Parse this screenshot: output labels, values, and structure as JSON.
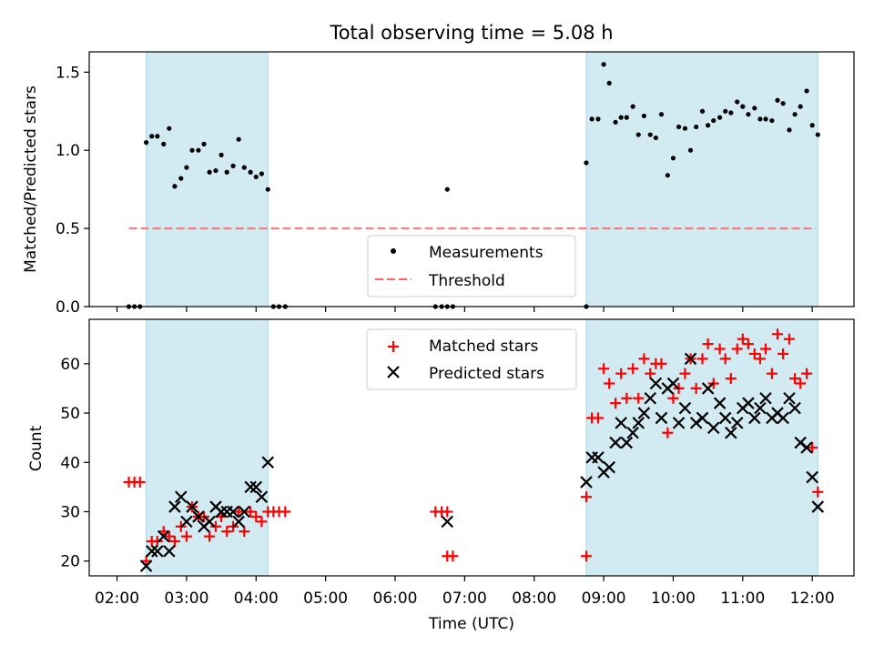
{
  "title": "Total observing time = 5.08 h",
  "x_axis": {
    "label": "Time (UTC)",
    "ticks": [
      "02:00",
      "03:00",
      "04:00",
      "05:00",
      "06:00",
      "07:00",
      "08:00",
      "09:00",
      "10:00",
      "11:00",
      "12:00"
    ],
    "range_hours": [
      1.6,
      12.6
    ]
  },
  "colors": {
    "shading": "#add8e6",
    "measurement": "#000000",
    "threshold": "#ff6666",
    "matched": "#ff0000",
    "predicted": "#000000"
  },
  "chart_data": [
    {
      "type": "scatter",
      "ylabel": "Matched/Predicted stars",
      "ylim": [
        0,
        1.63
      ],
      "yticks": [
        "0.0",
        "0.5",
        "1.0",
        "1.5"
      ],
      "observing_windows": [
        [
          2.42,
          4.17
        ],
        [
          8.75,
          12.08
        ]
      ],
      "threshold": {
        "name": "Threshold",
        "value": 0.5,
        "x_range": [
          2.17,
          12.05
        ]
      },
      "legend": {
        "entries": [
          "Measurements",
          "Threshold"
        ],
        "placement": "lower center"
      },
      "series": [
        {
          "name": "Measurements",
          "points": [
            [
              2.17,
              0
            ],
            [
              2.25,
              0
            ],
            [
              2.33,
              0
            ],
            [
              2.42,
              1.05
            ],
            [
              2.5,
              1.09
            ],
            [
              2.58,
              1.09
            ],
            [
              2.67,
              1.04
            ],
            [
              2.75,
              1.14
            ],
            [
              2.83,
              0.77
            ],
            [
              2.92,
              0.82
            ],
            [
              3.0,
              0.89
            ],
            [
              3.08,
              1.0
            ],
            [
              3.17,
              1.0
            ],
            [
              3.25,
              1.04
            ],
            [
              3.33,
              0.86
            ],
            [
              3.42,
              0.87
            ],
            [
              3.5,
              0.97
            ],
            [
              3.58,
              0.86
            ],
            [
              3.67,
              0.9
            ],
            [
              3.75,
              1.07
            ],
            [
              3.83,
              0.89
            ],
            [
              3.92,
              0.86
            ],
            [
              4.0,
              0.83
            ],
            [
              4.08,
              0.85
            ],
            [
              4.17,
              0.75
            ],
            [
              4.25,
              0
            ],
            [
              4.33,
              0
            ],
            [
              4.42,
              0
            ],
            [
              6.58,
              0
            ],
            [
              6.67,
              0
            ],
            [
              6.75,
              0.75
            ],
            [
              6.75,
              0
            ],
            [
              6.83,
              0
            ],
            [
              8.75,
              0
            ],
            [
              8.75,
              0.92
            ],
            [
              8.83,
              1.2
            ],
            [
              8.92,
              1.2
            ],
            [
              9.0,
              1.55
            ],
            [
              9.08,
              1.43
            ],
            [
              9.17,
              1.18
            ],
            [
              9.25,
              1.21
            ],
            [
              9.33,
              1.21
            ],
            [
              9.42,
              1.28
            ],
            [
              9.5,
              1.1
            ],
            [
              9.58,
              1.22
            ],
            [
              9.67,
              1.1
            ],
            [
              9.75,
              1.08
            ],
            [
              9.83,
              1.23
            ],
            [
              9.92,
              0.84
            ],
            [
              10.0,
              0.95
            ],
            [
              10.08,
              1.15
            ],
            [
              10.17,
              1.14
            ],
            [
              10.25,
              1.0
            ],
            [
              10.33,
              1.15
            ],
            [
              10.42,
              1.25
            ],
            [
              10.5,
              1.16
            ],
            [
              10.58,
              1.19
            ],
            [
              10.67,
              1.21
            ],
            [
              10.75,
              1.25
            ],
            [
              10.83,
              1.24
            ],
            [
              10.92,
              1.31
            ],
            [
              11.0,
              1.28
            ],
            [
              11.08,
              1.23
            ],
            [
              11.17,
              1.27
            ],
            [
              11.25,
              1.2
            ],
            [
              11.33,
              1.2
            ],
            [
              11.42,
              1.19
            ],
            [
              11.5,
              1.32
            ],
            [
              11.58,
              1.3
            ],
            [
              11.67,
              1.13
            ],
            [
              11.75,
              1.23
            ],
            [
              11.83,
              1.28
            ],
            [
              11.92,
              1.38
            ],
            [
              12.0,
              1.16
            ],
            [
              12.08,
              1.1
            ]
          ]
        }
      ]
    },
    {
      "type": "scatter",
      "ylabel": "Count",
      "ylim": [
        17,
        69
      ],
      "yticks": [
        "20",
        "30",
        "40",
        "50",
        "60"
      ],
      "observing_windows": [
        [
          2.42,
          4.17
        ],
        [
          8.75,
          12.08
        ]
      ],
      "legend": {
        "entries": [
          "Matched stars",
          "Predicted stars"
        ],
        "placement": "upper center"
      },
      "series": [
        {
          "name": "Matched stars",
          "marker": "plus",
          "points": [
            [
              2.17,
              36
            ],
            [
              2.25,
              36
            ],
            [
              2.33,
              36
            ],
            [
              2.42,
              20
            ],
            [
              2.5,
              24
            ],
            [
              2.58,
              24
            ],
            [
              2.67,
              26
            ],
            [
              2.75,
              25
            ],
            [
              2.83,
              24
            ],
            [
              2.92,
              27
            ],
            [
              3.0,
              25
            ],
            [
              3.08,
              31
            ],
            [
              3.17,
              29
            ],
            [
              3.25,
              29
            ],
            [
              3.33,
              25
            ],
            [
              3.42,
              27
            ],
            [
              3.5,
              29
            ],
            [
              3.58,
              26
            ],
            [
              3.67,
              27
            ],
            [
              3.75,
              30
            ],
            [
              3.83,
              26
            ],
            [
              3.92,
              30
            ],
            [
              4.0,
              29
            ],
            [
              4.08,
              28
            ],
            [
              4.17,
              30
            ],
            [
              4.25,
              30
            ],
            [
              4.33,
              30
            ],
            [
              4.42,
              30
            ],
            [
              6.58,
              30
            ],
            [
              6.67,
              30
            ],
            [
              6.75,
              30
            ],
            [
              6.75,
              21
            ],
            [
              6.83,
              21
            ],
            [
              8.75,
              21
            ],
            [
              8.75,
              33
            ],
            [
              8.83,
              49
            ],
            [
              8.92,
              49
            ],
            [
              9.0,
              59
            ],
            [
              9.08,
              56
            ],
            [
              9.17,
              52
            ],
            [
              9.25,
              58
            ],
            [
              9.33,
              53
            ],
            [
              9.42,
              59
            ],
            [
              9.5,
              53
            ],
            [
              9.58,
              61
            ],
            [
              9.67,
              58
            ],
            [
              9.75,
              60
            ],
            [
              9.83,
              60
            ],
            [
              9.92,
              46
            ],
            [
              10.0,
              53
            ],
            [
              10.08,
              55
            ],
            [
              10.17,
              58
            ],
            [
              10.25,
              61
            ],
            [
              10.33,
              55
            ],
            [
              10.42,
              61
            ],
            [
              10.5,
              64
            ],
            [
              10.58,
              56
            ],
            [
              10.67,
              63
            ],
            [
              10.75,
              61
            ],
            [
              10.83,
              57
            ],
            [
              10.92,
              63
            ],
            [
              11.0,
              65
            ],
            [
              11.08,
              64
            ],
            [
              11.17,
              62
            ],
            [
              11.25,
              61
            ],
            [
              11.33,
              63
            ],
            [
              11.42,
              58
            ],
            [
              11.5,
              66
            ],
            [
              11.58,
              62
            ],
            [
              11.67,
              65
            ],
            [
              11.75,
              57
            ],
            [
              11.83,
              56
            ],
            [
              11.92,
              58
            ],
            [
              12.0,
              43
            ],
            [
              12.08,
              34
            ]
          ]
        },
        {
          "name": "Predicted stars",
          "marker": "x",
          "points": [
            [
              2.42,
              19
            ],
            [
              2.5,
              22
            ],
            [
              2.58,
              22
            ],
            [
              2.67,
              25
            ],
            [
              2.75,
              22
            ],
            [
              2.83,
              31
            ],
            [
              2.92,
              33
            ],
            [
              3.0,
              28
            ],
            [
              3.08,
              31
            ],
            [
              3.17,
              29
            ],
            [
              3.25,
              27
            ],
            [
              3.33,
              28
            ],
            [
              3.42,
              31
            ],
            [
              3.5,
              30
            ],
            [
              3.58,
              30
            ],
            [
              3.67,
              30
            ],
            [
              3.75,
              28
            ],
            [
              3.83,
              30
            ],
            [
              3.92,
              35
            ],
            [
              4.0,
              35
            ],
            [
              4.08,
              33
            ],
            [
              4.17,
              40
            ],
            [
              6.75,
              28
            ],
            [
              8.75,
              36
            ],
            [
              8.83,
              41
            ],
            [
              8.92,
              41
            ],
            [
              9.0,
              38
            ],
            [
              9.08,
              39
            ],
            [
              9.17,
              44
            ],
            [
              9.25,
              48
            ],
            [
              9.33,
              44
            ],
            [
              9.42,
              46
            ],
            [
              9.5,
              48
            ],
            [
              9.58,
              50
            ],
            [
              9.67,
              53
            ],
            [
              9.75,
              56
            ],
            [
              9.83,
              49
            ],
            [
              9.92,
              55
            ],
            [
              10.0,
              56
            ],
            [
              10.08,
              48
            ],
            [
              10.17,
              51
            ],
            [
              10.25,
              61
            ],
            [
              10.33,
              48
            ],
            [
              10.42,
              49
            ],
            [
              10.5,
              55
            ],
            [
              10.58,
              47
            ],
            [
              10.67,
              52
            ],
            [
              10.75,
              49
            ],
            [
              10.83,
              46
            ],
            [
              10.92,
              48
            ],
            [
              11.0,
              51
            ],
            [
              11.08,
              52
            ],
            [
              11.17,
              49
            ],
            [
              11.25,
              51
            ],
            [
              11.33,
              53
            ],
            [
              11.42,
              49
            ],
            [
              11.5,
              50
            ],
            [
              11.58,
              49
            ],
            [
              11.67,
              53
            ],
            [
              11.75,
              51
            ],
            [
              11.83,
              44
            ],
            [
              11.92,
              43
            ],
            [
              12.0,
              37
            ],
            [
              12.08,
              31
            ]
          ]
        }
      ]
    }
  ]
}
